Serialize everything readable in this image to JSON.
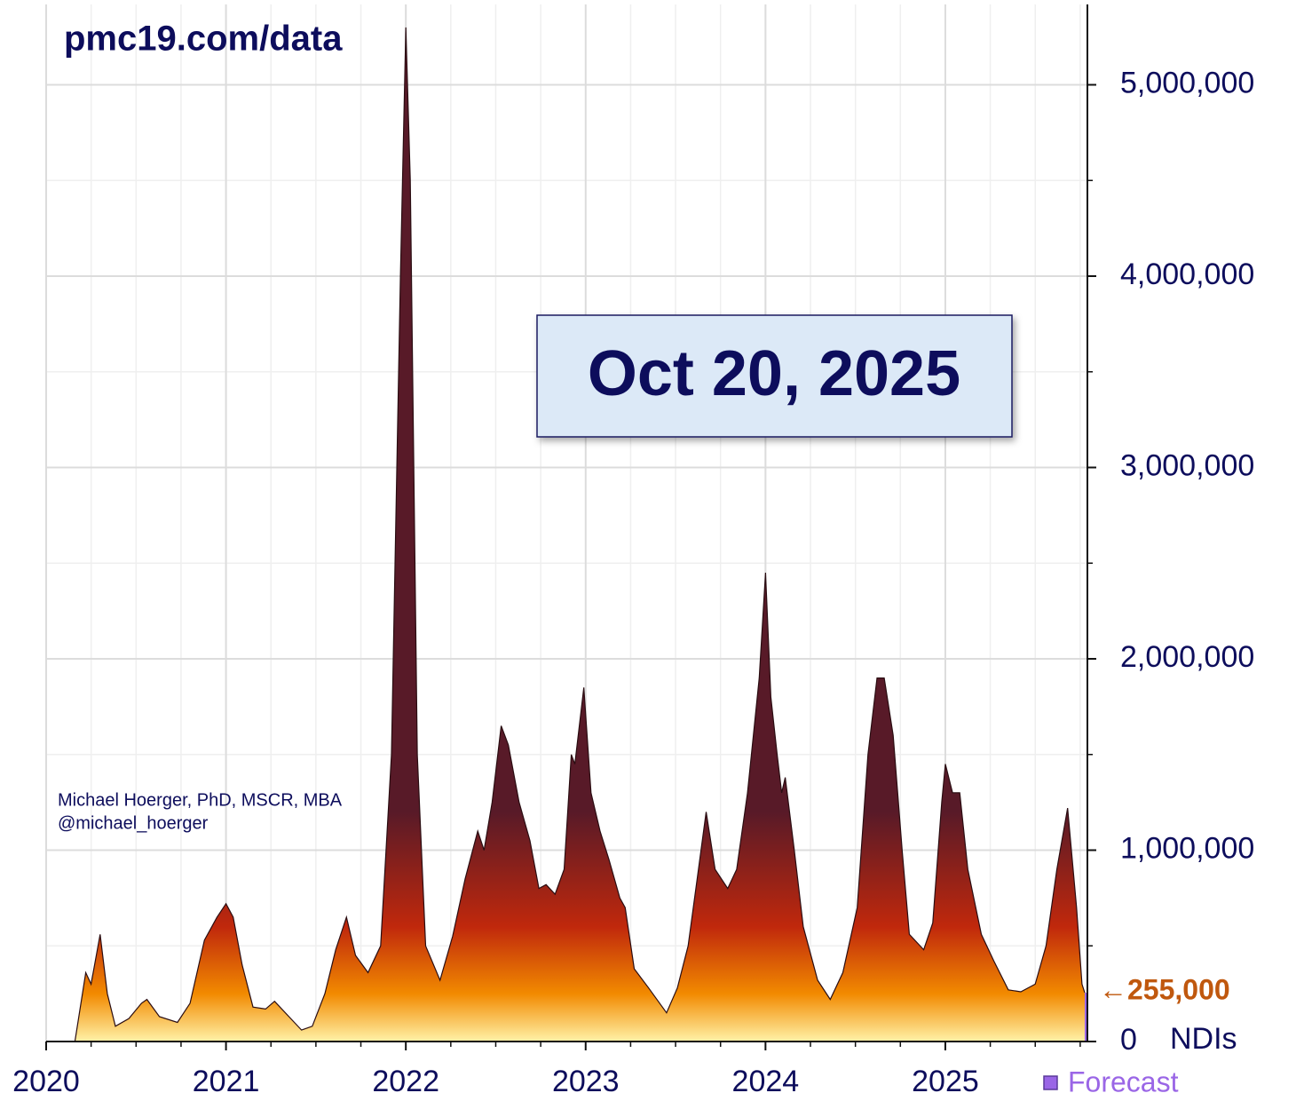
{
  "chart_data": {
    "type": "area",
    "title": "pmc19.com/data",
    "date_label": "Oct 20, 2025",
    "credit": [
      "Michael Hoerger, PhD, MSCR, MBA",
      "@michael_hoerger"
    ],
    "y_unit_label": "NDIs",
    "last_value_label": {
      "value": 255000,
      "label": "←255,000"
    },
    "x": [
      2020.16,
      2020.22,
      2020.25,
      2020.3,
      2020.34,
      2020.385,
      2020.46,
      2020.53,
      2020.56,
      2020.63,
      2020.73,
      2020.8,
      2020.88,
      2020.95,
      2021.0,
      2021.04,
      2021.09,
      2021.15,
      2021.22,
      2021.27,
      2021.35,
      2021.42,
      2021.48,
      2021.55,
      2021.61,
      2021.67,
      2021.72,
      2021.79,
      2021.86,
      2021.92,
      2021.97,
      2022.0,
      2022.025,
      2022.064,
      2022.11,
      2022.19,
      2022.26,
      2022.33,
      2022.4,
      2022.435,
      2022.48,
      2022.53,
      2022.57,
      2022.63,
      2022.69,
      2022.74,
      2022.78,
      2022.83,
      2022.88,
      2022.92,
      2022.94,
      2022.99,
      2023.03,
      2023.08,
      2023.13,
      2023.19,
      2023.22,
      2023.27,
      2023.35,
      2023.45,
      2023.51,
      2023.57,
      2023.62,
      2023.67,
      2023.72,
      2023.79,
      2023.84,
      2023.9,
      2023.965,
      2024.0,
      2024.03,
      2024.065,
      2024.09,
      2024.11,
      2024.16,
      2024.21,
      2024.29,
      2024.36,
      2024.43,
      2024.51,
      2024.57,
      2024.62,
      2024.66,
      2024.71,
      2024.76,
      2024.8,
      2024.88,
      2024.93,
      2024.98,
      2025.0,
      2025.04,
      2025.08,
      2025.125,
      2025.2,
      2025.27,
      2025.35,
      2025.42,
      2025.5,
      2025.56,
      2025.62,
      2025.68,
      2025.73,
      2025.76,
      2025.775
    ],
    "values": [
      0,
      360000,
      300000,
      560000,
      250000,
      80000,
      120000,
      200000,
      220000,
      130000,
      100000,
      200000,
      530000,
      650000,
      720000,
      650000,
      400000,
      180000,
      170000,
      210000,
      130000,
      60000,
      80000,
      250000,
      480000,
      650000,
      450000,
      360000,
      500000,
      1500000,
      4000000,
      5300000,
      4500000,
      1500000,
      500000,
      320000,
      550000,
      850000,
      1100000,
      1000000,
      1250000,
      1650000,
      1550000,
      1250000,
      1050000,
      800000,
      820000,
      770000,
      900000,
      1500000,
      1450000,
      1850000,
      1300000,
      1100000,
      950000,
      750000,
      700000,
      380000,
      280000,
      150000,
      280000,
      500000,
      850000,
      1200000,
      900000,
      800000,
      900000,
      1300000,
      1900000,
      2450000,
      1800000,
      1500000,
      1300000,
      1380000,
      1000000,
      600000,
      320000,
      220000,
      360000,
      700000,
      1500000,
      1900000,
      1900000,
      1600000,
      1000000,
      560000,
      480000,
      620000,
      1250000,
      1450000,
      1300000,
      1300000,
      900000,
      560000,
      420000,
      270000,
      260000,
      300000,
      500000,
      900000,
      1220000,
      700000,
      300000,
      255000
    ],
    "gradient": [
      {
        "value": 0,
        "color": "#fff2a8"
      },
      {
        "value": 250000,
        "color": "#f28a00"
      },
      {
        "value": 600000,
        "color": "#c0280c"
      },
      {
        "value": 1200000,
        "color": "#581a28"
      }
    ],
    "forecast": {
      "name": "Forecast",
      "color": "#9a66e6",
      "x": [
        2025.775,
        2025.79
      ],
      "values": [
        255000,
        255000
      ]
    },
    "xlim": [
      2020,
      2025.79
    ],
    "xticks": [
      2020,
      2021,
      2022,
      2023,
      2024,
      2025
    ],
    "x_minor_ticks": [
      2020.25,
      2020.5,
      2020.75,
      2021.25,
      2021.5,
      2021.75,
      2022.25,
      2022.5,
      2022.75,
      2023.25,
      2023.5,
      2023.75,
      2024.25,
      2024.5,
      2024.75,
      2025.25,
      2025.5,
      2025.75
    ],
    "ylim": [
      0,
      5420000
    ],
    "yticks": [
      {
        "value": 0,
        "label": "0"
      },
      {
        "value": 1000000,
        "label": "1,000,000"
      },
      {
        "value": 2000000,
        "label": "2,000,000"
      },
      {
        "value": 3000000,
        "label": "3,000,000"
      },
      {
        "value": 4000000,
        "label": "4,000,000"
      },
      {
        "value": 5000000,
        "label": "5,000,000"
      }
    ],
    "y_minor_ticks": [
      500000,
      1500000,
      2500000,
      3500000,
      4500000
    ],
    "grid": true
  }
}
